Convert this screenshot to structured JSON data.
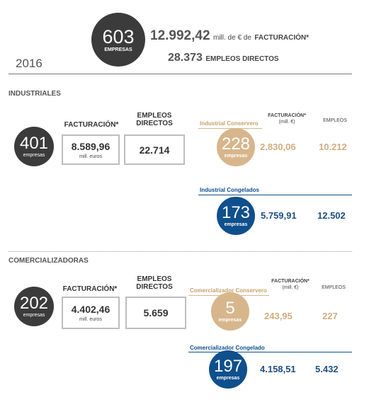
{
  "header": {
    "year": "2016",
    "companies": "603",
    "companies_label": "EMPRESAS",
    "revenue": "12.992,42",
    "revenue_unit": "mill. de € de",
    "revenue_label": "FACTURACIÓN*",
    "jobs": "28.373",
    "jobs_label": "EMPLEOS DIRECTOS"
  },
  "sections": [
    {
      "title": "INDUSTRIALES",
      "companies": "401",
      "companies_label": "empresas",
      "revenue_label": "FACTURACIÓN*",
      "revenue": "8.589,96",
      "revenue_unit": "mill. euros",
      "jobs_label": "EMPLEOS DIRECTOS",
      "jobs": "22.714",
      "revenue_header": "FACTURACIÓN*",
      "revenue_header_unit": "(mill. €)",
      "jobs_header": "EMPLEOS",
      "subgroups": [
        {
          "name": "Industrial Conservero",
          "companies": "228",
          "companies_label": "empresas",
          "revenue": "2.830,06",
          "jobs": "10.212"
        },
        {
          "name": "Industrial Congelados",
          "companies": "173",
          "companies_label": "empresas",
          "revenue": "5.759,91",
          "jobs": "12.502"
        }
      ]
    },
    {
      "title": "COMERCIALIZADORAS",
      "companies": "202",
      "companies_label": "empresas",
      "revenue_label": "FACTURACIÓN*",
      "revenue": "4.402,46",
      "revenue_unit": "mill. euros",
      "jobs_label": "EMPLEOS DIRECTOS",
      "jobs": "5.659",
      "revenue_header": "FACTURACIÓN*",
      "revenue_header_unit": "(mill. €)",
      "jobs_header": "EMPLEOS",
      "subgroups": [
        {
          "name": "Comercializador Conservero",
          "companies": "5",
          "companies_label": "empresas",
          "revenue": "243,95",
          "jobs": "227"
        },
        {
          "name": "Comercializador Congelado",
          "companies": "197",
          "companies_label": "empresas",
          "revenue": "4.158,51",
          "jobs": "5.432"
        }
      ]
    }
  ]
}
